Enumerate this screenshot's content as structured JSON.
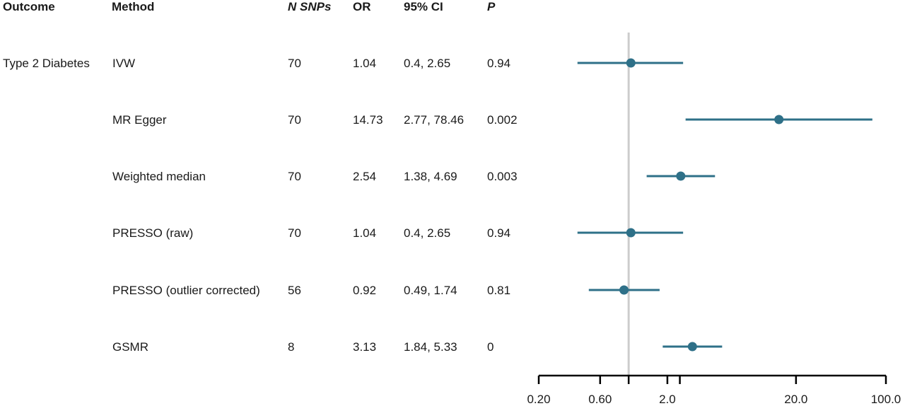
{
  "headers": {
    "outcome": "Outcome",
    "method": "Method",
    "nsnps": "N SNPs",
    "or": "OR",
    "ci": "95% CI",
    "p": "P"
  },
  "outcome": "Type 2 Diabetes",
  "rows": [
    {
      "method": "IVW",
      "nsnps": "70",
      "or": "1.04",
      "ci": "0.4, 2.65",
      "p": "0.94"
    },
    {
      "method": "MR Egger",
      "nsnps": "70",
      "or": "14.73",
      "ci": "2.77, 78.46",
      "p": "0.002"
    },
    {
      "method": "Weighted median",
      "nsnps": "70",
      "or": "2.54",
      "ci": "1.38, 4.69",
      "p": "0.003"
    },
    {
      "method": "PRESSO (raw)",
      "nsnps": "70",
      "or": "1.04",
      "ci": "0.4, 2.65",
      "p": "0.94"
    },
    {
      "method": "PRESSO (outlier corrected)",
      "nsnps": "56",
      "or": "0.92",
      "ci": "0.49, 1.74",
      "p": "0.81"
    },
    {
      "method": "GSMR",
      "nsnps": "8",
      "or": "3.13",
      "ci": "1.84, 5.33",
      "p": "0"
    }
  ],
  "colors": {
    "point": "#2e7088",
    "refline": "#cccccc",
    "axis": "#000000"
  },
  "chart_data": {
    "type": "scatter",
    "x_scale": "log",
    "xlim": [
      0.2,
      100
    ],
    "reference_line": 1,
    "tick_labels": [
      "0.20",
      "0.60",
      "2.0",
      "20.0",
      "100.0"
    ],
    "tick_values": [
      0.2,
      0.6,
      2,
      20,
      100
    ],
    "minor_ticks": [
      1,
      2.5
    ],
    "categories": [
      "IVW",
      "MR Egger",
      "Weighted median",
      "PRESSO (raw)",
      "PRESSO (outlier corrected)",
      "GSMR"
    ],
    "estimate": [
      1.04,
      14.73,
      2.54,
      1.04,
      0.92,
      3.13
    ],
    "lower": [
      0.4,
      2.77,
      1.38,
      0.4,
      0.49,
      1.84
    ],
    "upper": [
      2.65,
      78.46,
      4.69,
      2.65,
      1.74,
      5.33
    ],
    "grid": false
  }
}
